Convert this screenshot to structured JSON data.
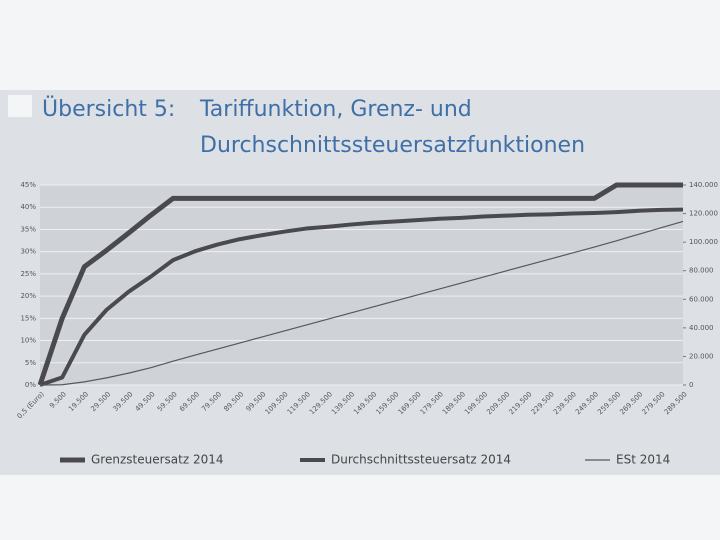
{
  "label": "Übersicht 5:",
  "title": [
    "Tariffunktion, Grenz- und",
    "Durchschnittssteuersatzfunktionen"
  ],
  "chart_data": {
    "type": "line",
    "categories": [
      "0,5 (Euro)",
      "9.500",
      "19.500",
      "29.500",
      "39.500",
      "49.500",
      "59.500",
      "69.500",
      "79.500",
      "89.500",
      "99.500",
      "109.500",
      "119.500",
      "129.500",
      "139.500",
      "149.500",
      "159.500",
      "169.500",
      "179.500",
      "189.500",
      "199.500",
      "209.500",
      "219.500",
      "229.500",
      "239.500",
      "249.500",
      "259.500",
      "269.500",
      "279.500",
      "289.500"
    ],
    "series": [
      {
        "name": "Grenzsteuersatz 2014",
        "color": "#4a4a4e",
        "width": 5,
        "values": [
          0,
          15,
          26.6,
          30.3,
          34.2,
          38.2,
          42,
          42,
          42,
          42,
          42,
          42,
          42,
          42,
          42,
          42,
          42,
          42,
          42,
          42,
          42,
          42,
          42,
          42,
          42,
          42,
          45,
          45,
          45,
          45
        ]
      },
      {
        "name": "Durchschnittssteuersatz 2014",
        "color": "#4a4a4e",
        "width": 4,
        "values": [
          0,
          1.7,
          11.3,
          16.9,
          21,
          24.4,
          28.1,
          30.1,
          31.6,
          32.8,
          33.7,
          34.5,
          35.2,
          35.6,
          36.1,
          36.5,
          36.8,
          37.1,
          37.4,
          37.6,
          37.9,
          38.1,
          38.3,
          38.4,
          38.6,
          38.7,
          38.9,
          39.2,
          39.4,
          39.5
        ]
      },
      {
        "name": "ESt 2014",
        "color": "#55585c",
        "width": 1.2,
        "axis": "y2",
        "values": [
          0,
          160,
          2200,
          5000,
          8300,
          12100,
          16700,
          20950,
          25150,
          29350,
          33550,
          37750,
          41950,
          46150,
          50350,
          54550,
          58750,
          62950,
          67150,
          71350,
          75550,
          79750,
          83950,
          88150,
          92350,
          96550,
          100954,
          105514,
          110014,
          114514
        ]
      }
    ],
    "ylim": [
      0,
      45
    ],
    "yticks": [
      {
        "value": 0,
        "label": "0%"
      },
      {
        "value": 5,
        "label": "5%"
      },
      {
        "value": 10,
        "label": "10%"
      },
      {
        "value": 15,
        "label": "15%"
      },
      {
        "value": 20,
        "label": "20%"
      },
      {
        "value": 25,
        "label": "25%"
      },
      {
        "value": 30,
        "label": "30%"
      },
      {
        "value": 35,
        "label": "35%"
      },
      {
        "value": 40,
        "label": "40%"
      },
      {
        "value": 45,
        "label": "45%"
      }
    ],
    "y2lim": [
      0,
      140000
    ],
    "y2ticks": [
      0,
      {
        "value": 20000,
        "label": "20.000"
      },
      {
        "value": 40000,
        "label": "40.000"
      },
      {
        "value": 60000,
        "label": "60.000"
      },
      {
        "value": 80000,
        "label": "80.000"
      },
      {
        "value": 100000,
        "label": "100.000"
      },
      {
        "value": 120000,
        "label": "120.000"
      },
      {
        "value": 140000,
        "label": "140.000"
      }
    ],
    "grid": true
  }
}
